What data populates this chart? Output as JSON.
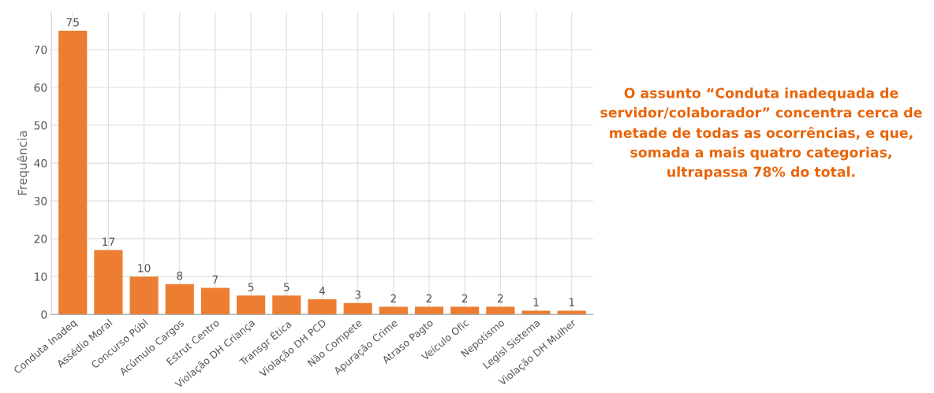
{
  "chart_data": {
    "type": "bar",
    "ylabel": "Frequência",
    "categories": [
      "Conduta Inadeq",
      "Assédio Moral",
      "Concurso Públ",
      "Acúmulo Cargos",
      "Estrut Centro",
      "Violação DH Criança",
      "Transgr Ética",
      "Violação DH PCD",
      "Não Compete",
      "Apuração Crime",
      "Atraso Pagto",
      "Veículo Ofic",
      "Nepotismo",
      "Legisl Sistema",
      "Violação DH Mulher"
    ],
    "values": [
      75,
      17,
      10,
      8,
      7,
      5,
      5,
      4,
      3,
      2,
      2,
      2,
      2,
      1,
      1
    ],
    "color": "#ed7d31",
    "data_labels": true,
    "grid": true,
    "ylim": [
      0,
      80
    ],
    "yticks": [
      0,
      10,
      20,
      30,
      40,
      50,
      60,
      70
    ],
    "annotations": [
      "O assunto “Conduta inadequada de servidor/colaborador” concentra cerca de metade de todas as ocorrências, e que, somada a mais quatro categorias, ultrapassa 78% do total."
    ]
  }
}
